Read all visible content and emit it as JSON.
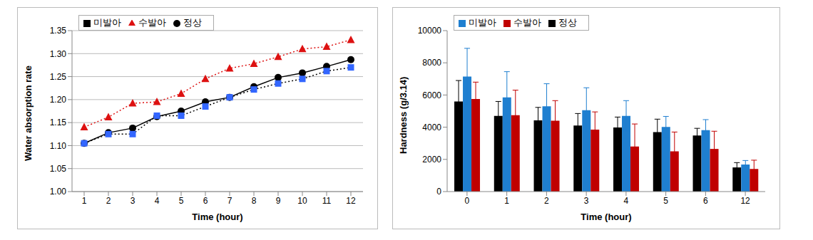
{
  "chart_data": [
    {
      "type": "line",
      "x_label": "Time (hour)",
      "y_label": "Water absorption rate",
      "x": [
        1,
        2,
        3,
        4,
        5,
        6,
        7,
        8,
        9,
        10,
        11,
        12
      ],
      "xlim": [
        0.5,
        12.5
      ],
      "xticks": [
        1,
        2,
        3,
        4,
        5,
        6,
        7,
        8,
        9,
        10,
        11,
        12
      ],
      "ylim": [
        1.0,
        1.35
      ],
      "yticks": [
        {
          "value": 1.0,
          "label": "1.00"
        },
        {
          "value": 1.05,
          "label": "1.05"
        },
        {
          "value": 1.1,
          "label": "1.10"
        },
        {
          "value": 1.15,
          "label": "1.15"
        },
        {
          "value": 1.2,
          "label": "1.20"
        },
        {
          "value": 1.25,
          "label": "1.25"
        },
        {
          "value": 1.3,
          "label": "1.30"
        },
        {
          "value": 1.35,
          "label": "1.35"
        }
      ],
      "grid": true,
      "legend": "upper left",
      "series": [
        {
          "name": "정상",
          "color": "#000000",
          "marker": "circle",
          "line_style": "solid",
          "values": [
            1.105,
            1.128,
            1.138,
            1.163,
            1.175,
            1.195,
            1.205,
            1.228,
            1.248,
            1.258,
            1.272,
            1.287
          ]
        },
        {
          "name": "미발아",
          "color": "#3366ff",
          "marker": "square",
          "line_style": "dotted",
          "values": [
            1.105,
            1.125,
            1.125,
            1.165,
            1.165,
            1.185,
            1.205,
            1.222,
            1.235,
            1.245,
            1.262,
            1.27
          ]
        },
        {
          "name": "수발아",
          "color": "#dd1111",
          "marker": "triangle",
          "line_style": "dotted",
          "values": [
            1.14,
            1.162,
            1.192,
            1.195,
            1.213,
            1.245,
            1.268,
            1.278,
            1.293,
            1.31,
            1.315,
            1.33
          ]
        }
      ]
    },
    {
      "type": "bar",
      "x_label": "Time (hour)",
      "y_label": "Hardness (g/3.14)",
      "categories": [
        "0",
        "1",
        "2",
        "3",
        "4",
        "5",
        "6",
        "12"
      ],
      "ylim": [
        0,
        10000
      ],
      "yticks": [
        0,
        2000,
        4000,
        6000,
        8000,
        10000
      ],
      "grid": false,
      "legend": "upper left",
      "series": [
        {
          "name": "정상",
          "color": "#000000",
          "values": [
            5600,
            4700,
            4430,
            4100,
            3980,
            3700,
            3480,
            1500
          ],
          "errors": [
            1300,
            900,
            800,
            750,
            650,
            800,
            450,
            300
          ]
        },
        {
          "name": "미발아",
          "color": "#1f7fd0",
          "values": [
            7150,
            5850,
            5300,
            5050,
            4700,
            4020,
            3820,
            1680
          ],
          "errors": [
            1750,
            1600,
            1400,
            1400,
            950,
            650,
            650,
            250
          ]
        },
        {
          "name": "수발아",
          "color": "#c00000",
          "values": [
            5750,
            4750,
            4400,
            3850,
            2800,
            2500,
            2650,
            1400
          ],
          "errors": [
            1050,
            1550,
            1250,
            1100,
            1400,
            1200,
            1100,
            550
          ]
        }
      ]
    }
  ]
}
